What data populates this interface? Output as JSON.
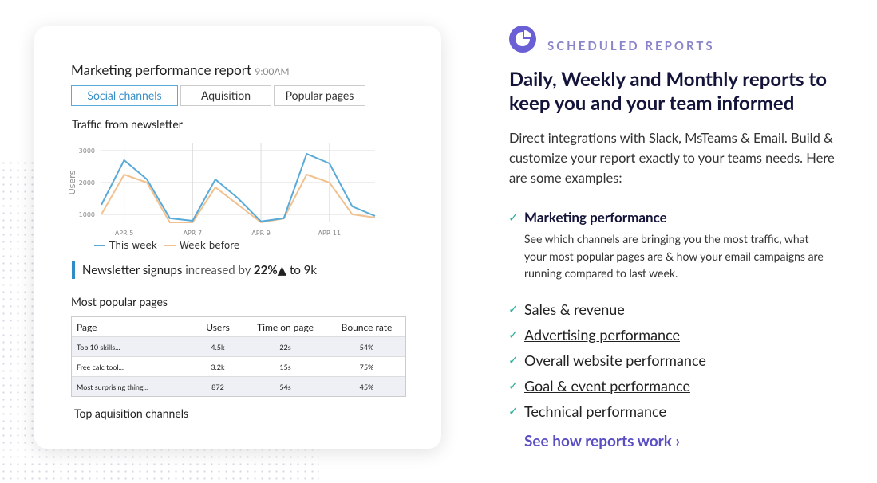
{
  "report": {
    "title": "Marketing performance report",
    "time": "9:00AM",
    "tabs": [
      "Social channels",
      "Aquisition",
      "Popular pages"
    ]
  },
  "chart_data": {
    "type": "line",
    "title": "Traffic from newsletter",
    "y_label": "Users",
    "categories": [
      null,
      "APR 5",
      null,
      null,
      "APR 7",
      null,
      null,
      "APR 9",
      null,
      null,
      "APR 11",
      null,
      null
    ],
    "series": [
      {
        "name": "This week",
        "color": "#5aaad8",
        "values": [
          1300,
          2700,
          2100,
          880,
          800,
          2100,
          1500,
          780,
          880,
          2900,
          2600,
          1250,
          950
        ]
      },
      {
        "name": "Week before",
        "color": "#f2c18f",
        "values": [
          1000,
          2250,
          2000,
          750,
          750,
          1850,
          1300,
          750,
          870,
          2250,
          2000,
          1000,
          900
        ]
      }
    ],
    "ylim": [
      750,
      3250
    ],
    "yticks": [
      1000,
      2000,
      3000
    ],
    "grid": true
  },
  "summary": {
    "metric": "Newsletter signups",
    "text": "increased by",
    "change": "22%▲",
    "rest": "to 9k"
  },
  "table": {
    "title": "Most popular pages",
    "columns": [
      "Page",
      "Users",
      "Time on page",
      "Bounce rate"
    ],
    "rows": [
      [
        "Top 10 skills...",
        "4.5k",
        "22s",
        "54%"
      ],
      [
        "Free calc tool...",
        "3.2k",
        "15s",
        "75%"
      ],
      [
        "Most surprising thing...",
        "872",
        "54s",
        "45%"
      ]
    ]
  },
  "next_section": "Top aquisition channels",
  "feature": {
    "eyebrow": "SCHEDULED REPORTS",
    "heading": "Daily, Weekly and Monthly reports to keep you and your team informed",
    "intro": "Direct integrations with Slack, MsTeams & Email. Build & customize your report exactly to your teams needs. Here are some examples:",
    "items": [
      {
        "title": "Marketing performance",
        "text": "See which channels are bringing you the most traffic, what your most popular pages are & how your email campaigns are running compared to last week."
      }
    ],
    "links": [
      "Sales & revenue",
      "Advertising performance",
      "Overall website performance",
      "Goal & event performance",
      "Technical performance"
    ],
    "cta": "See how reports work ›"
  }
}
